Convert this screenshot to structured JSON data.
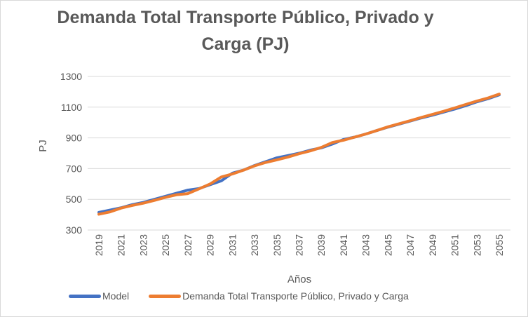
{
  "chart_data": {
    "type": "line",
    "title": "Demanda Total Transporte Público, Privado y Carga (PJ)",
    "xlabel": "Años",
    "ylabel": "PJ",
    "ylim": [
      300,
      1300
    ],
    "yticks": [
      "300",
      "500",
      "700",
      "900",
      "1100",
      "1300"
    ],
    "x": [
      2019,
      2020,
      2021,
      2022,
      2023,
      2024,
      2025,
      2026,
      2027,
      2028,
      2029,
      2030,
      2031,
      2032,
      2033,
      2034,
      2035,
      2036,
      2037,
      2038,
      2039,
      2040,
      2041,
      2042,
      2043,
      2044,
      2045,
      2046,
      2047,
      2048,
      2049,
      2050,
      2051,
      2052,
      2053,
      2054,
      2055
    ],
    "xticks": [
      "2019",
      "2021",
      "2023",
      "2025",
      "2027",
      "2029",
      "2031",
      "2033",
      "2035",
      "2037",
      "2039",
      "2041",
      "2043",
      "2045",
      "2047",
      "2049",
      "2051",
      "2053",
      "2055"
    ],
    "grid": true,
    "legend_position": "bottom",
    "series": [
      {
        "name": "Model",
        "color": "#4472C4",
        "values": [
          415,
          430,
          445,
          465,
          480,
          500,
          520,
          540,
          560,
          570,
          595,
          620,
          670,
          690,
          720,
          745,
          770,
          785,
          800,
          820,
          835,
          860,
          890,
          905,
          925,
          948,
          970,
          990,
          1010,
          1030,
          1048,
          1068,
          1088,
          1110,
          1135,
          1155,
          1180
        ]
      },
      {
        "name": "Demanda Total Transporte Público, Privado y Carga",
        "color": "#ED7D31",
        "values": [
          403,
          418,
          443,
          460,
          475,
          493,
          513,
          530,
          537,
          568,
          600,
          645,
          665,
          690,
          718,
          740,
          757,
          775,
          797,
          815,
          838,
          870,
          885,
          905,
          925,
          948,
          972,
          992,
          1012,
          1033,
          1053,
          1073,
          1095,
          1118,
          1140,
          1160,
          1185
        ]
      }
    ]
  }
}
